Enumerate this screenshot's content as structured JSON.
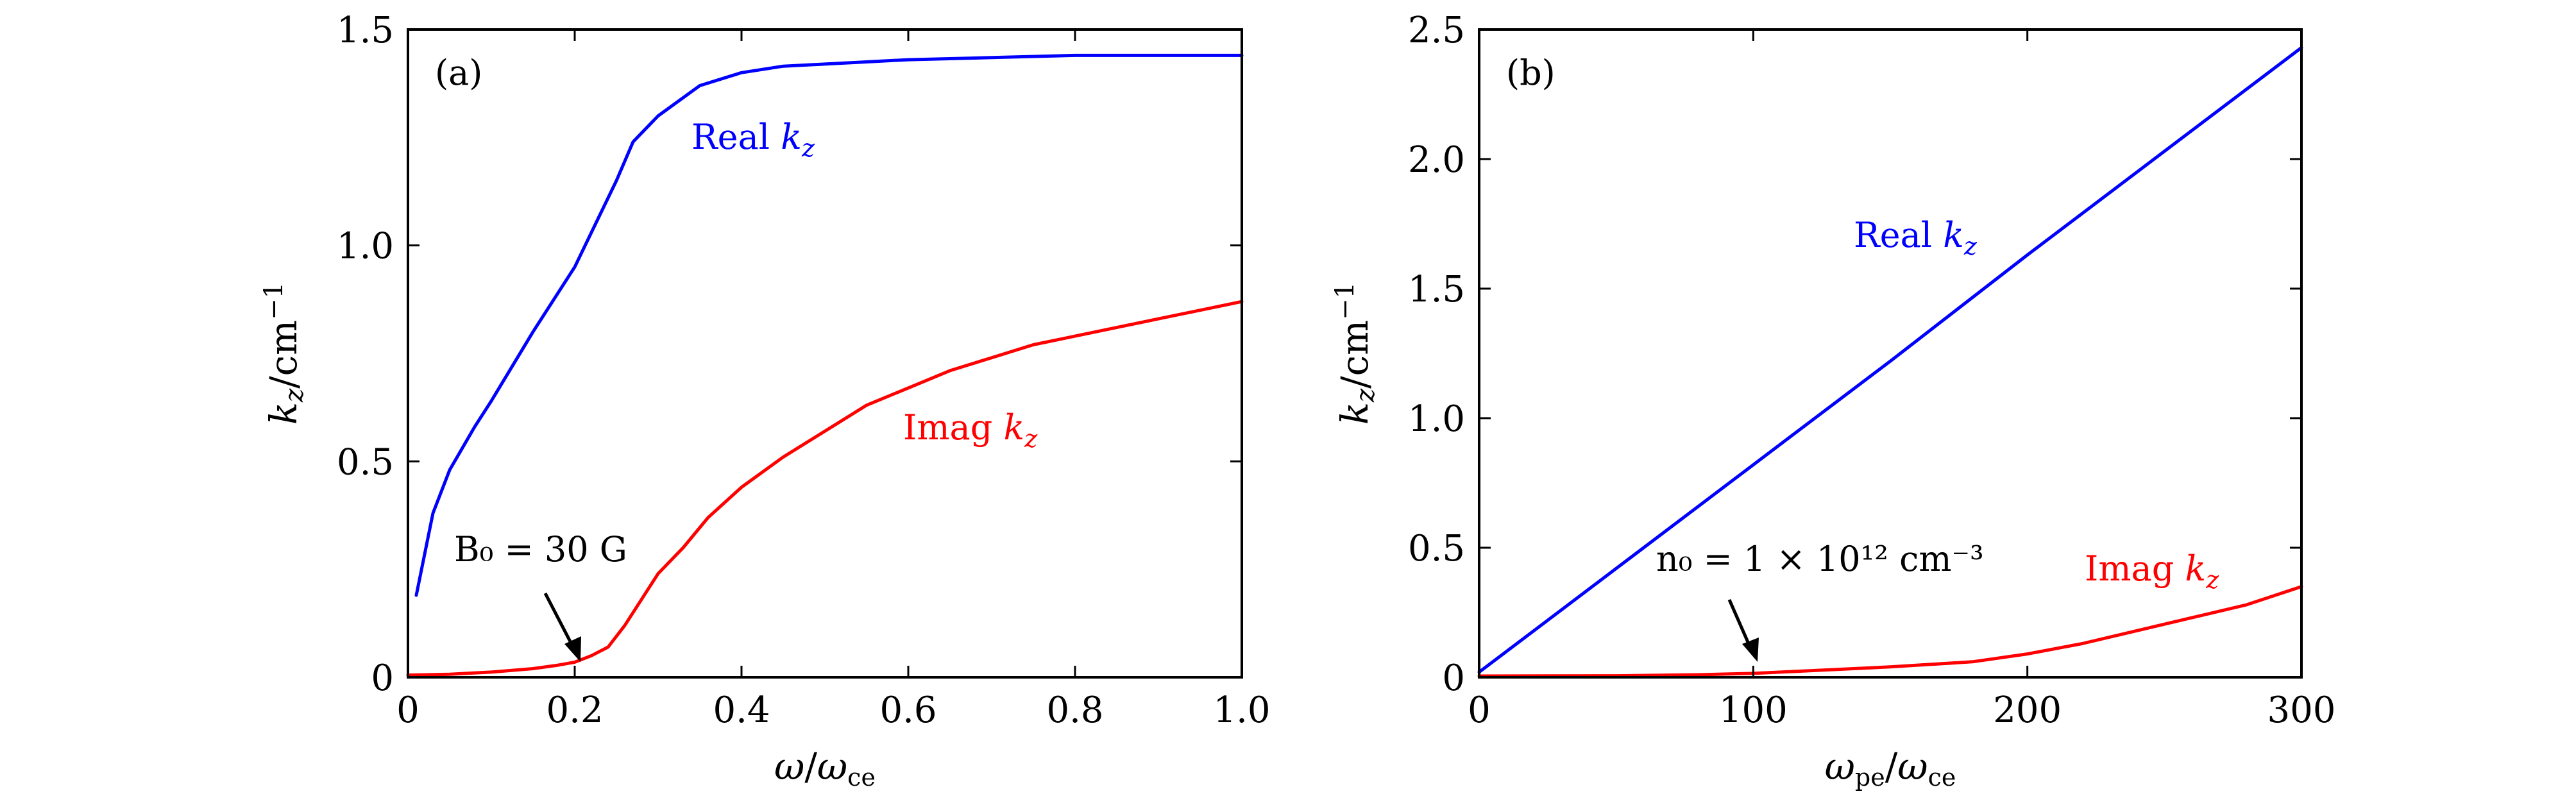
{
  "colors": {
    "real": "#0000ff",
    "imag": "#ff0000",
    "axis": "#000000"
  },
  "chart_data": [
    {
      "type": "line",
      "panel_label": "(a)",
      "xlabel": "ω/ω_ce",
      "ylabel": "k_z/cm^-1",
      "xlim": [
        0,
        1.0
      ],
      "ylim": [
        0,
        1.5
      ],
      "xticks": [
        0,
        0.2,
        0.4,
        0.6,
        0.8,
        1.0
      ],
      "xtick_labels": [
        "0",
        "0.2",
        "0.4",
        "0.6",
        "0.8",
        "1.0"
      ],
      "yticks": [
        0,
        0.5,
        1.0,
        1.5
      ],
      "ytick_labels": [
        "0",
        "0.5",
        "1.0",
        "1.5"
      ],
      "annotation": {
        "text": "B₀ = 30 G",
        "arrow_to": [
          0.21,
          0.04
        ]
      },
      "series": [
        {
          "name": "Real k_z",
          "color": "#0000ff",
          "x": [
            0.01,
            0.03,
            0.05,
            0.08,
            0.1,
            0.15,
            0.2,
            0.23,
            0.25,
            0.27,
            0.3,
            0.35,
            0.4,
            0.45,
            0.5,
            0.55,
            0.6,
            0.7,
            0.8,
            0.9,
            1.0
          ],
          "y": [
            0.19,
            0.38,
            0.48,
            0.58,
            0.64,
            0.8,
            0.95,
            1.07,
            1.15,
            1.24,
            1.3,
            1.37,
            1.4,
            1.415,
            1.42,
            1.425,
            1.43,
            1.435,
            1.44,
            1.44,
            1.44
          ]
        },
        {
          "name": "Imag k_z",
          "color": "#ff0000",
          "x": [
            0,
            0.05,
            0.1,
            0.15,
            0.18,
            0.2,
            0.22,
            0.24,
            0.26,
            0.28,
            0.3,
            0.33,
            0.36,
            0.4,
            0.45,
            0.5,
            0.55,
            0.6,
            0.65,
            0.7,
            0.75,
            0.8,
            0.85,
            0.9,
            0.95,
            1.0
          ],
          "y": [
            0.005,
            0.007,
            0.012,
            0.02,
            0.028,
            0.035,
            0.05,
            0.07,
            0.12,
            0.18,
            0.24,
            0.3,
            0.37,
            0.44,
            0.51,
            0.57,
            0.63,
            0.67,
            0.71,
            0.74,
            0.77,
            0.79,
            0.81,
            0.83,
            0.85,
            0.87
          ]
        }
      ]
    },
    {
      "type": "line",
      "panel_label": "(b)",
      "xlabel": "ω_pe/ω_ce",
      "ylabel": "k_z/cm^-1",
      "xlim": [
        0,
        300
      ],
      "ylim": [
        0,
        2.5
      ],
      "xticks": [
        0,
        100,
        200,
        300
      ],
      "xtick_labels": [
        "0",
        "100",
        "200",
        "300"
      ],
      "yticks": [
        0,
        0.5,
        1.0,
        1.5,
        2.0,
        2.5
      ],
      "ytick_labels": [
        "0",
        "0.5",
        "1.0",
        "1.5",
        "2.0",
        "2.5"
      ],
      "annotation": {
        "text": "n₀ = 1 × 10¹² cm⁻³",
        "arrow_to": [
          105,
          0.03
        ]
      },
      "series": [
        {
          "name": "Real k_z",
          "color": "#0000ff",
          "x": [
            0,
            50,
            100,
            150,
            200,
            250,
            300
          ],
          "y": [
            0.02,
            0.42,
            0.82,
            1.22,
            1.63,
            2.03,
            2.43
          ]
        },
        {
          "name": "Imag k_z",
          "color": "#ff0000",
          "x": [
            0,
            50,
            80,
            100,
            120,
            150,
            180,
            200,
            220,
            240,
            260,
            280,
            300
          ],
          "y": [
            0.005,
            0.006,
            0.01,
            0.015,
            0.025,
            0.04,
            0.06,
            0.09,
            0.13,
            0.18,
            0.23,
            0.28,
            0.35
          ]
        }
      ]
    }
  ]
}
